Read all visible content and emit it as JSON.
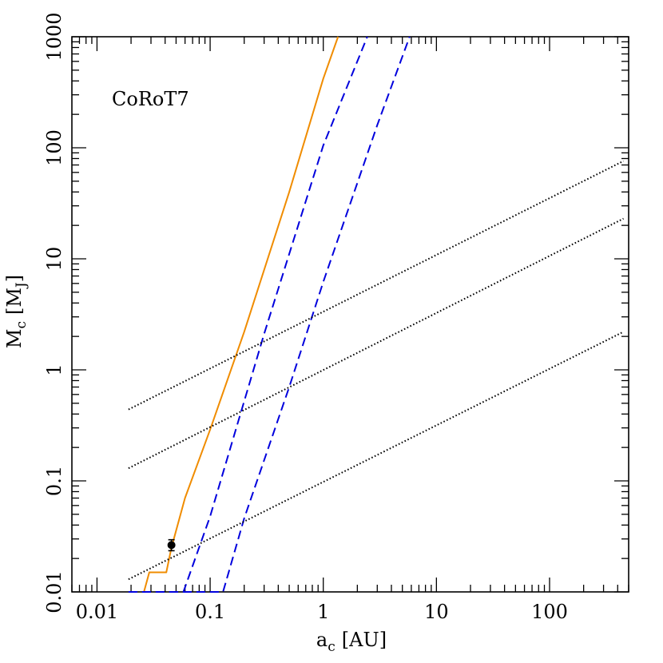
{
  "chart_data": {
    "type": "line",
    "title": "",
    "annotation": "CoRoT7",
    "xlabel": {
      "main": "a",
      "sub": "c",
      "unit": "[AU]"
    },
    "ylabel": {
      "main": "M",
      "sub": "c",
      "unit_open": "[M",
      "unit_sub": "J",
      "unit_close": "]"
    },
    "xscale": "log",
    "yscale": "log",
    "xlim": [
      0.006,
      500
    ],
    "ylim": [
      0.01,
      1000
    ],
    "grid": false,
    "legend": "none",
    "x_ticks": [
      {
        "value": 0.01,
        "label": "0.01"
      },
      {
        "value": 0.1,
        "label": "0.1"
      },
      {
        "value": 1,
        "label": "1"
      },
      {
        "value": 10,
        "label": "10"
      },
      {
        "value": 100,
        "label": "100"
      }
    ],
    "y_ticks": [
      {
        "value": 0.01,
        "label": "0.01"
      },
      {
        "value": 0.1,
        "label": "0.1"
      },
      {
        "value": 1,
        "label": "1"
      },
      {
        "value": 10,
        "label": "10"
      },
      {
        "value": 100,
        "label": "100"
      },
      {
        "value": 1000,
        "label": "1000"
      }
    ],
    "series": [
      {
        "style": "solid",
        "color": "#f08c00",
        "x": [
          0.026,
          0.029,
          0.041,
          0.0455,
          0.06,
          0.1,
          0.2,
          0.5,
          1.0,
          1.35
        ],
        "y": [
          0.01,
          0.015,
          0.015,
          0.025,
          0.07,
          0.29,
          2.2,
          40,
          420,
          1000
        ]
      },
      {
        "style": "dashed",
        "color": "#0000dd",
        "x": [
          0.019,
          0.058,
          0.1,
          0.3,
          1.0,
          2.45
        ],
        "y": [
          0.01,
          0.01,
          0.048,
          2.1,
          105,
          1000
        ]
      },
      {
        "style": "dashed",
        "color": "#0000dd",
        "x": [
          0.019,
          0.13,
          0.2,
          0.5,
          1.0,
          3.0,
          5.8
        ],
        "y": [
          0.01,
          0.01,
          0.046,
          0.7,
          6.2,
          160,
          1000
        ]
      },
      {
        "style": "dotted",
        "color": "#000000",
        "x": [
          0.019,
          450
        ],
        "y": [
          0.44,
          76
        ]
      },
      {
        "style": "dotted",
        "color": "#000000",
        "x": [
          0.019,
          450
        ],
        "y": [
          0.13,
          23
        ]
      },
      {
        "style": "dotted",
        "color": "#000000",
        "x": [
          0.019,
          450
        ],
        "y": [
          0.013,
          2.2
        ]
      }
    ],
    "points": [
      {
        "x": 0.0455,
        "y": 0.0264,
        "yerr": [
          0.0235,
          0.0295
        ],
        "color": "#000000"
      }
    ]
  }
}
